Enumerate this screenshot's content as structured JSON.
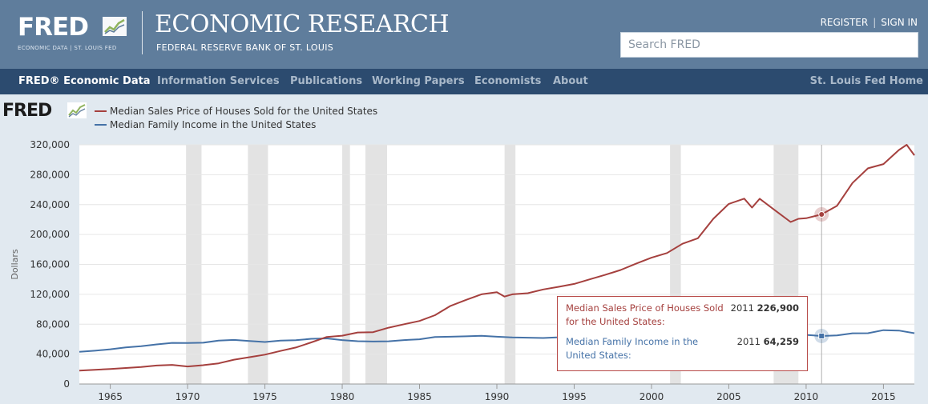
{
  "header": {
    "logo_word": "FRED",
    "logo_sub": "ECONOMIC DATA  |  ST. LOUIS FED",
    "title": "ECONOMIC RESEARCH",
    "subtitle": "FEDERAL RESERVE BANK OF ST. LOUIS",
    "register": "REGISTER",
    "sign_in": "SIGN IN",
    "search_placeholder": "Search FRED"
  },
  "nav": {
    "items": [
      "FRED® Economic Data",
      "Information Services",
      "Publications",
      "Working Papers",
      "Economists",
      "About"
    ],
    "right": "St. Louis Fed Home"
  },
  "brand_small": "FRED",
  "colors": {
    "house": "#a5403e",
    "income": "#4572a7",
    "header": "#5f7d9c",
    "nav": "#2c4b6f",
    "recession": "#e3e3e3"
  },
  "chart_data": {
    "type": "line",
    "title": "",
    "xlabel": "",
    "ylabel": "Dollars",
    "xlim": [
      1963,
      2017
    ],
    "ylim": [
      0,
      320000
    ],
    "yticks": [
      0,
      40000,
      80000,
      120000,
      160000,
      200000,
      240000,
      280000,
      320000
    ],
    "ytick_labels": [
      "0",
      "40,000",
      "80,000",
      "120,000",
      "160,000",
      "200,000",
      "240,000",
      "280,000",
      "320,000"
    ],
    "xticks": [
      1965,
      1970,
      1975,
      1980,
      1985,
      1990,
      1995,
      2000,
      2005,
      2010,
      2015
    ],
    "recessions": [
      [
        1969.9,
        1970.9
      ],
      [
        1973.9,
        1975.2
      ],
      [
        1980.0,
        1980.5
      ],
      [
        1981.5,
        1982.9
      ],
      [
        1990.5,
        1991.2
      ],
      [
        2001.2,
        2001.9
      ],
      [
        2007.9,
        2009.5
      ]
    ],
    "series": [
      {
        "name": "Median Sales Price of Houses Sold for the United States",
        "color": "#a5403e",
        "x": [
          1963,
          1964,
          1965,
          1966,
          1967,
          1968,
          1969,
          1970,
          1971,
          1972,
          1973,
          1974,
          1975,
          1976,
          1977,
          1978,
          1979,
          1980,
          1981,
          1982,
          1983,
          1984,
          1985,
          1986,
          1987,
          1988,
          1989,
          1990,
          1990.5,
          1991,
          1992,
          1993,
          1994,
          1995,
          1996,
          1997,
          1998,
          1999,
          2000,
          2001,
          2002,
          2003,
          2004,
          2005,
          2006,
          2006.5,
          2007,
          2008,
          2009,
          2009.5,
          2010,
          2011,
          2012,
          2013,
          2014,
          2015,
          2016,
          2016.5,
          2017
        ],
        "values": [
          18000,
          19000,
          20000,
          21400,
          22700,
          24700,
          25600,
          23400,
          25200,
          27600,
          32500,
          35900,
          39300,
          44200,
          48800,
          55700,
          62900,
          64600,
          68900,
          69300,
          75300,
          79900,
          84300,
          92000,
          104500,
          112500,
          120000,
          122900,
          117000,
          120000,
          121500,
          126500,
          130000,
          133900,
          140000,
          146000,
          152500,
          161000,
          169000,
          175200,
          187600,
          195000,
          221000,
          240900,
          248000,
          236000,
          247900,
          232100,
          216700,
          221000,
          221800,
          226900,
          238400,
          268900,
          288500,
          294200,
          313000,
          320000,
          306000
        ]
      },
      {
        "name": "Median Family Income in the United States",
        "color": "#4572a7",
        "x": [
          1963,
          1964,
          1965,
          1966,
          1967,
          1968,
          1969,
          1970,
          1971,
          1972,
          1973,
          1974,
          1975,
          1976,
          1977,
          1978,
          1979,
          1980,
          1981,
          1982,
          1983,
          1984,
          1985,
          1986,
          1987,
          1988,
          1989,
          1990,
          1991,
          1992,
          1993,
          1994,
          1995,
          1996,
          1997,
          1998,
          1999,
          2000,
          2001,
          2002,
          2003,
          2004,
          2005,
          2006,
          2007,
          2008,
          2009,
          2010,
          2011,
          2012,
          2013,
          2014,
          2015,
          2016,
          2017
        ],
        "values": [
          43000,
          44500,
          46500,
          49000,
          50500,
          53000,
          55000,
          54800,
          55200,
          58000,
          59000,
          57500,
          56200,
          58000,
          58500,
          60500,
          61000,
          58800,
          57300,
          56800,
          57200,
          58800,
          59800,
          62800,
          63300,
          63800,
          64400,
          63300,
          62300,
          62000,
          61500,
          62500,
          64200,
          65200,
          66900,
          68700,
          70200,
          70000,
          68900,
          68300,
          68200,
          68000,
          68900,
          69900,
          71400,
          68800,
          67500,
          65700,
          64259,
          65000,
          67800,
          68000,
          72000,
          71500,
          68000
        ]
      }
    ],
    "tooltip": {
      "year": "2011",
      "entries": [
        {
          "name": "Median Sales Price of Houses Sold for the United States:",
          "year": "2011",
          "value": "226,900"
        },
        {
          "name": "Median Family Income in the United States:",
          "year": "2011",
          "value": "64,259"
        }
      ],
      "x": 2011
    }
  }
}
